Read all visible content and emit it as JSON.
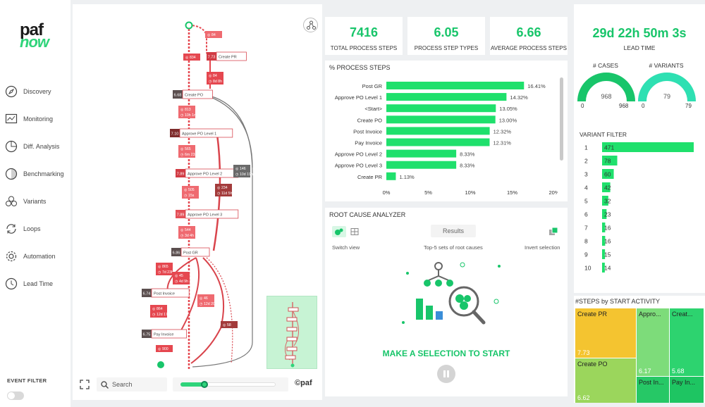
{
  "logo": {
    "line1": "paf",
    "line2": "now"
  },
  "nav": [
    {
      "label": "Discovery",
      "icon": "compass-icon"
    },
    {
      "label": "Monitoring",
      "icon": "monitor-chart-icon"
    },
    {
      "label": "Diff. Analysis",
      "icon": "pie-chart-icon"
    },
    {
      "label": "Benchmarking",
      "icon": "half-circle-icon"
    },
    {
      "label": "Variants",
      "icon": "circles-icon"
    },
    {
      "label": "Loops",
      "icon": "loop-icon"
    },
    {
      "label": "Automation",
      "icon": "gear-icon"
    },
    {
      "label": "Lead Time",
      "icon": "clock-icon"
    }
  ],
  "event_filter": "EVENT FILTER",
  "map": {
    "search_placeholder": "Search",
    "copyright": "©paf",
    "slider_level": 0.25,
    "nodes": [
      {
        "label": "Create PR",
        "badge": "7.73"
      },
      {
        "label": "Create PO",
        "badge": "6.68"
      },
      {
        "label": "Approve PO Level 1",
        "badge": "7.10"
      },
      {
        "label": "Approve PO Level 2",
        "badge": "7.89"
      },
      {
        "label": "Approve PO Level 3",
        "badge": "7.89"
      },
      {
        "label": "Post GR",
        "badge": "6.86"
      },
      {
        "label": "Post Invoice",
        "badge": "6.74"
      },
      {
        "label": "Pay Invoice",
        "badge": "6.75"
      }
    ],
    "edges": [
      {
        "cases": "84",
        "time": ""
      },
      {
        "cases": "834",
        "time": ""
      },
      {
        "cases": "84",
        "time": "8d 8h"
      },
      {
        "cases": "813",
        "time": "10h 1m"
      },
      {
        "cases": "565",
        "time": "6m 23s"
      },
      {
        "cases": "505",
        "time": "15s"
      },
      {
        "cases": "544",
        "time": "3d 4h"
      },
      {
        "cases": "234",
        "time": "11d 5h"
      },
      {
        "cases": "146",
        "time": "10d 19h"
      },
      {
        "cases": "865",
        "time": "7d 23h"
      },
      {
        "cases": "45",
        "time": "4d 9h"
      },
      {
        "cases": "46",
        "time": "12d 20h"
      },
      {
        "cases": "864",
        "time": "12d 17h"
      },
      {
        "cases": "58",
        "time": ""
      },
      {
        "cases": "900",
        "time": ""
      }
    ]
  },
  "kpis": [
    {
      "value": "7416",
      "label": "TOTAL PROCESS STEPS"
    },
    {
      "value": "6.05",
      "label": "PROCESS STEP TYPES"
    },
    {
      "value": "6.66",
      "label": "AVERAGE PROCESS STEPS"
    }
  ],
  "process_steps_title": "% PROCESS STEPS",
  "rca": {
    "title": "ROOT CAUSE ANALYZER",
    "results": "Results",
    "switch_view": "Switch view",
    "top5": "Top-5 sets of root causes",
    "invert": "Invert selection",
    "cta": "MAKE A SELECTION TO START"
  },
  "lead_time": {
    "value": "29d 22h 50m 3s",
    "label": "LEAD TIME"
  },
  "gauges": [
    {
      "title": "# CASES",
      "value": "968",
      "min": "0",
      "max": "968",
      "fraction": 1.0
    },
    {
      "title": "# VARIANTS",
      "value": "79",
      "min": "0",
      "max": "79",
      "fraction": 1.0
    }
  ],
  "variant_filter_title": "VARIANT FILTER",
  "steps_by_start_title": "#STEPS by START ACTIVITY",
  "treemap": [
    {
      "label": "Create PR",
      "value": "7.73",
      "color": "#f4c430"
    },
    {
      "label": "Create PO",
      "value": "6.62",
      "color": "#9bd65c"
    },
    {
      "label": "Appro...",
      "value": "6.17",
      "color": "#7ddc7a"
    },
    {
      "label": "Creat...",
      "value": "5.68",
      "color": "#2dd36f"
    },
    {
      "label": "Post In...",
      "value": "",
      "color": "#26c866"
    },
    {
      "label": "Pay In...",
      "value": "",
      "color": "#1ec562"
    }
  ],
  "colors": {
    "accent": "#18c56a",
    "bar": "#1fe06c",
    "edge_red": "#e8525a"
  },
  "chart_data": [
    {
      "type": "bar",
      "orientation": "horizontal",
      "title": "% PROCESS STEPS",
      "categories": [
        "Post GR",
        "Approve PO Level 1",
        "<Start>",
        "Create PO",
        "Post Invoice",
        "Pay Invoice",
        "Approve PO Level 2",
        "Approve PO Level 3",
        "Create PR"
      ],
      "values": [
        16.41,
        14.32,
        13.05,
        13.0,
        12.32,
        12.31,
        8.33,
        8.33,
        1.13
      ],
      "value_labels": [
        "16.41%",
        "14.32%",
        "13.05%",
        "13.00%",
        "12.32%",
        "12.31%",
        "8.33%",
        "8.33%",
        "1.13%"
      ],
      "xlim": [
        0,
        20
      ],
      "ticks": [
        "0%",
        "5%",
        "10%",
        "15%",
        "20%"
      ]
    },
    {
      "type": "bar",
      "orientation": "horizontal",
      "title": "VARIANT FILTER",
      "categories": [
        "1",
        "2",
        "3",
        "4",
        "5",
        "6",
        "7",
        "8",
        "9",
        "10"
      ],
      "values": [
        471,
        78,
        60,
        42,
        32,
        23,
        16,
        16,
        15,
        14
      ],
      "xlim": [
        0,
        471
      ]
    }
  ]
}
